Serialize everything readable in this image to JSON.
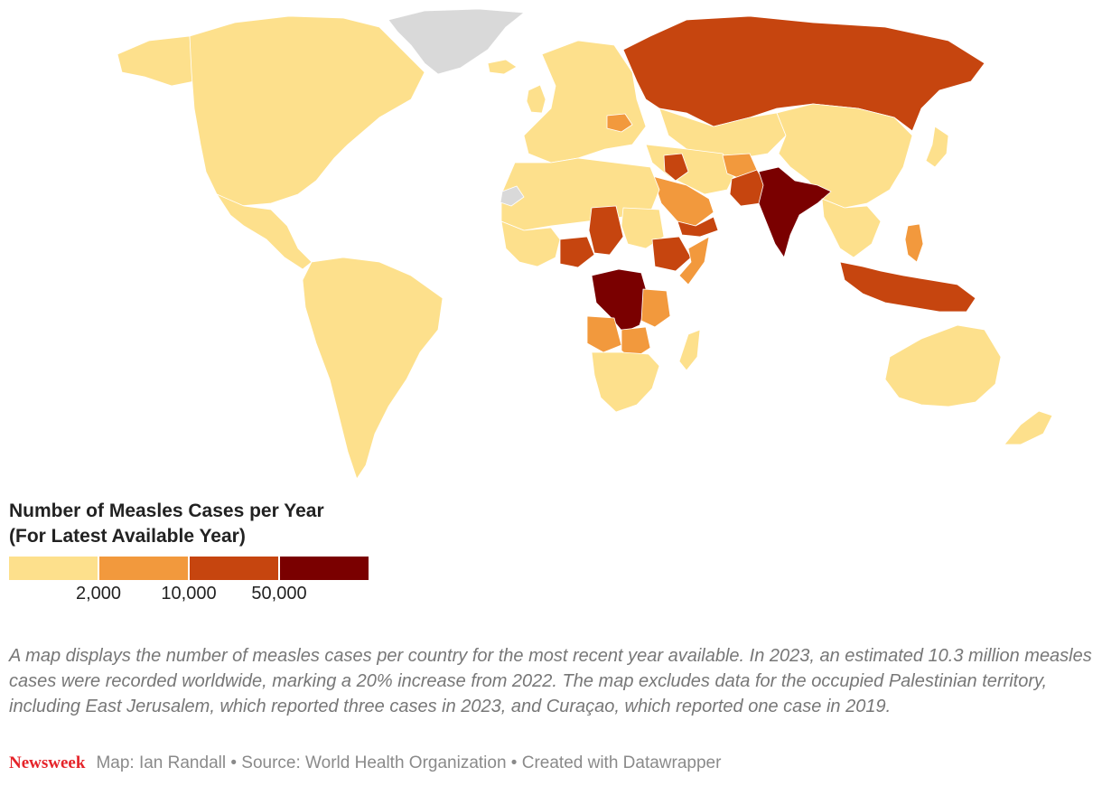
{
  "legend": {
    "title_line1": "Number of Measles Cases per Year",
    "title_line2": "(For Latest Available Year)",
    "bins": [
      {
        "label": "< 2,000",
        "color": "#fde08c"
      },
      {
        "label": "2,000 – 10,000",
        "color": "#f2993d"
      },
      {
        "label": "10,000 – 50,000",
        "color": "#c6450f"
      },
      {
        "label": "> 50,000",
        "color": "#7a0000"
      }
    ],
    "ticks": [
      "2,000",
      "10,000",
      "50,000"
    ],
    "no_data_color": "#d9d9d9"
  },
  "description": "A map displays the number of measles cases per country for the most recent year available. In 2023, an estimated 10.3 million measles cases were recorded worldwide, marking a 20% increase from 2022. The map excludes data for the occupied Palestinian territory, including East Jerusalem, which reported three cases in 2023, and Curaçao, which reported one case in 2019.",
  "footer": {
    "brand": "Newsweek",
    "credits": "Map: Ian Randall • Source: World Health Organization • Created with Datawrapper"
  },
  "map": {
    "regions": [
      {
        "name": "north-america",
        "bin": 0
      },
      {
        "name": "alaska",
        "bin": 0
      },
      {
        "name": "greenland",
        "bin": -1
      },
      {
        "name": "western-sahara",
        "bin": -1
      },
      {
        "name": "central-america",
        "bin": 0
      },
      {
        "name": "south-america",
        "bin": 0
      },
      {
        "name": "europe",
        "bin": 0
      },
      {
        "name": "iceland",
        "bin": 0
      },
      {
        "name": "uk",
        "bin": 0
      },
      {
        "name": "russia",
        "bin": 2
      },
      {
        "name": "romania",
        "bin": 1
      },
      {
        "name": "kazakhstan-central-asia",
        "bin": 0
      },
      {
        "name": "north-africa",
        "bin": 0
      },
      {
        "name": "west-africa",
        "bin": 0
      },
      {
        "name": "nigeria",
        "bin": 2
      },
      {
        "name": "chad",
        "bin": 2
      },
      {
        "name": "sudan",
        "bin": 0
      },
      {
        "name": "ethiopia",
        "bin": 2
      },
      {
        "name": "somalia",
        "bin": 1
      },
      {
        "name": "drc",
        "bin": 3
      },
      {
        "name": "angola",
        "bin": 1
      },
      {
        "name": "tanzania",
        "bin": 1
      },
      {
        "name": "zambia",
        "bin": 1
      },
      {
        "name": "southern-africa",
        "bin": 0
      },
      {
        "name": "madagascar",
        "bin": 0
      },
      {
        "name": "saudi-arabia",
        "bin": 1
      },
      {
        "name": "yemen",
        "bin": 2
      },
      {
        "name": "iraq",
        "bin": 2
      },
      {
        "name": "iran-middle-east",
        "bin": 0
      },
      {
        "name": "afghanistan",
        "bin": 1
      },
      {
        "name": "pakistan",
        "bin": 2
      },
      {
        "name": "india",
        "bin": 3
      },
      {
        "name": "china-east-asia",
        "bin": 0
      },
      {
        "name": "southeast-asia",
        "bin": 0
      },
      {
        "name": "philippines",
        "bin": 1
      },
      {
        "name": "indonesia",
        "bin": 2
      },
      {
        "name": "australia",
        "bin": 0
      },
      {
        "name": "new-zealand",
        "bin": 0
      },
      {
        "name": "japan",
        "bin": 0
      }
    ]
  }
}
